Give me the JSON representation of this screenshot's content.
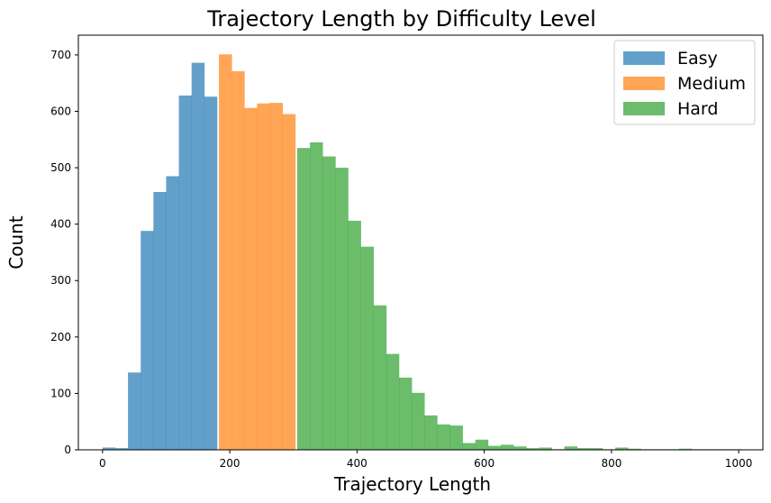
{
  "chart_data": {
    "type": "bar",
    "title": "Trajectory Length by Difficulty Level",
    "xlabel": "Trajectory Length",
    "ylabel": "Count",
    "xlim": [
      -38,
      1038
    ],
    "ylim": [
      0,
      735
    ],
    "xticks": [
      0,
      200,
      400,
      600,
      800,
      1000
    ],
    "yticks": [
      0,
      100,
      200,
      300,
      400,
      500,
      600,
      700
    ],
    "bin_width": 20,
    "legend_position": "top-right",
    "grid": false,
    "series": [
      {
        "name": "Easy",
        "color": "#1f77b4",
        "bins": [
          {
            "x": 0,
            "count": 4
          },
          {
            "x": 20,
            "count": 3
          },
          {
            "x": 40,
            "count": 137
          },
          {
            "x": 60,
            "count": 388
          },
          {
            "x": 80,
            "count": 457
          },
          {
            "x": 100,
            "count": 485
          },
          {
            "x": 120,
            "count": 628
          },
          {
            "x": 140,
            "count": 686
          },
          {
            "x": 160,
            "count": 626
          }
        ]
      },
      {
        "name": "Medium",
        "color": "#ff7f0e",
        "bins": [
          {
            "x": 183,
            "count": 701
          },
          {
            "x": 203,
            "count": 671
          },
          {
            "x": 223,
            "count": 606
          },
          {
            "x": 243,
            "count": 614
          },
          {
            "x": 263,
            "count": 615
          },
          {
            "x": 283,
            "count": 595
          }
        ]
      },
      {
        "name": "Hard",
        "color": "#2ca02c",
        "bins": [
          {
            "x": 306,
            "count": 535
          },
          {
            "x": 326,
            "count": 545
          },
          {
            "x": 346,
            "count": 520
          },
          {
            "x": 366,
            "count": 500
          },
          {
            "x": 386,
            "count": 406
          },
          {
            "x": 406,
            "count": 360
          },
          {
            "x": 426,
            "count": 256
          },
          {
            "x": 446,
            "count": 170
          },
          {
            "x": 466,
            "count": 128
          },
          {
            "x": 486,
            "count": 101
          },
          {
            "x": 506,
            "count": 61
          },
          {
            "x": 526,
            "count": 45
          },
          {
            "x": 546,
            "count": 43
          },
          {
            "x": 566,
            "count": 12
          },
          {
            "x": 586,
            "count": 18
          },
          {
            "x": 606,
            "count": 7
          },
          {
            "x": 626,
            "count": 9
          },
          {
            "x": 646,
            "count": 6
          },
          {
            "x": 666,
            "count": 3
          },
          {
            "x": 686,
            "count": 4
          },
          {
            "x": 706,
            "count": 1
          },
          {
            "x": 726,
            "count": 6
          },
          {
            "x": 746,
            "count": 3
          },
          {
            "x": 766,
            "count": 3
          },
          {
            "x": 786,
            "count": 1
          },
          {
            "x": 806,
            "count": 4
          },
          {
            "x": 826,
            "count": 2
          },
          {
            "x": 846,
            "count": 1
          },
          {
            "x": 866,
            "count": 1
          },
          {
            "x": 886,
            "count": 1
          },
          {
            "x": 906,
            "count": 2
          },
          {
            "x": 926,
            "count": 1
          },
          {
            "x": 946,
            "count": 1
          },
          {
            "x": 966,
            "count": 1
          },
          {
            "x": 986,
            "count": 1
          }
        ]
      }
    ]
  }
}
